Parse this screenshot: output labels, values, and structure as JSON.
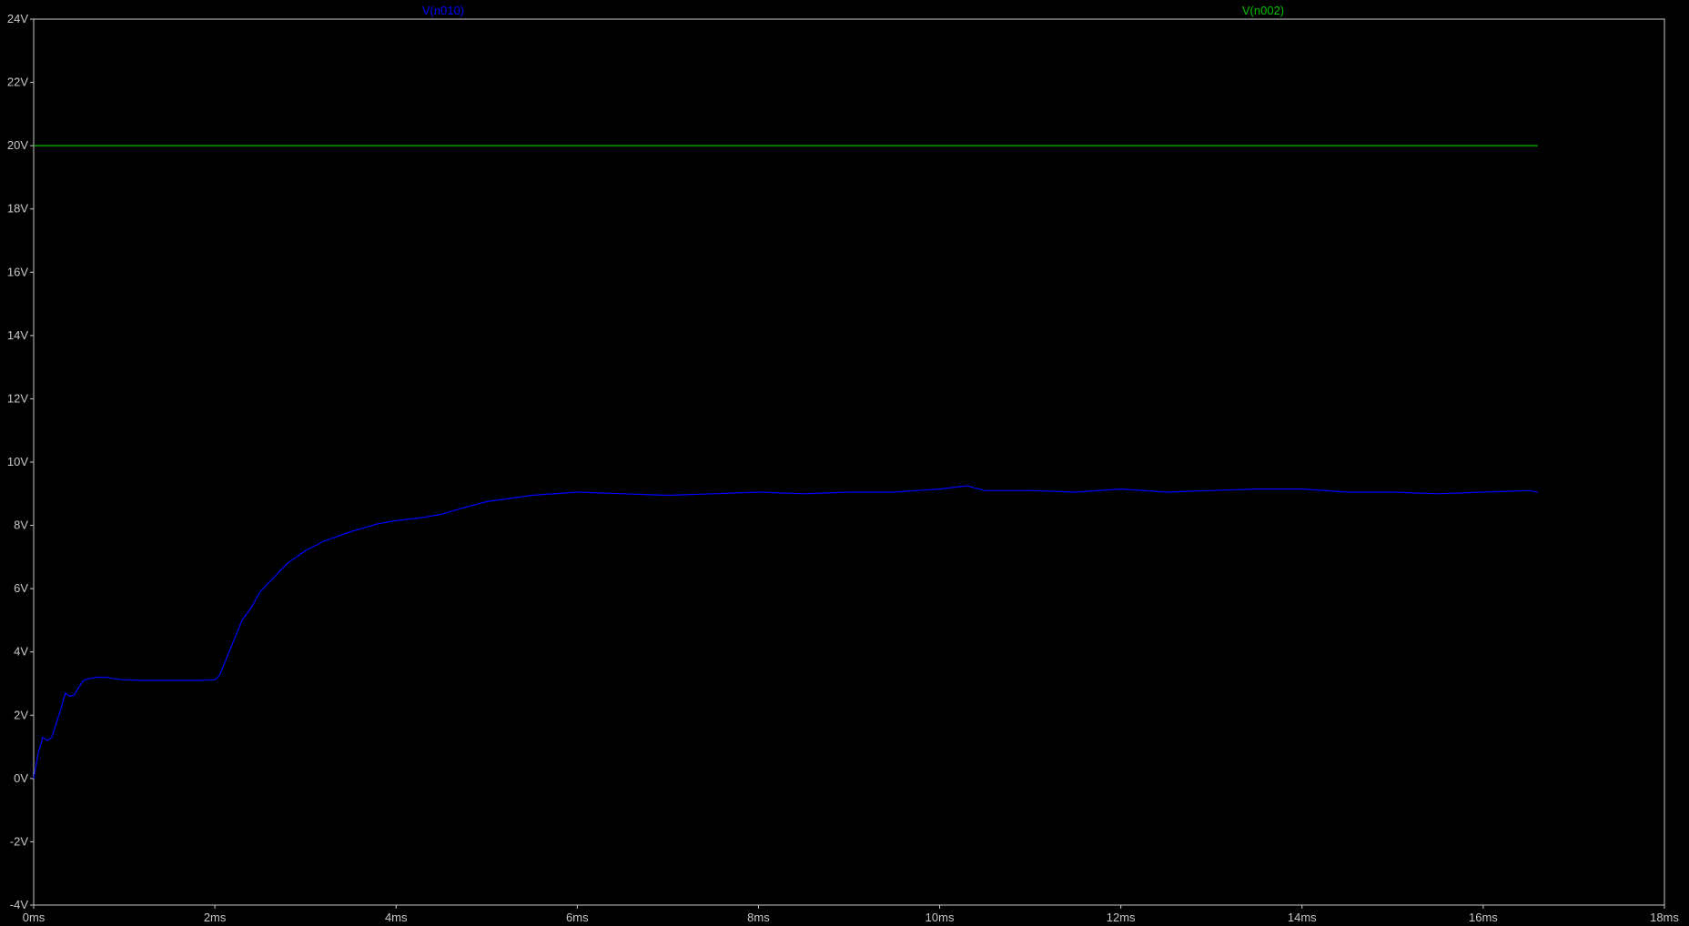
{
  "chart_data": {
    "type": "line",
    "xlabel": "",
    "ylabel": "",
    "xlim": [
      0,
      18
    ],
    "ylim": [
      -4,
      24
    ],
    "grid": false,
    "legend_placement": "top",
    "x_tick_labels": [
      "0ms",
      "2ms",
      "4ms",
      "6ms",
      "8ms",
      "10ms",
      "12ms",
      "14ms",
      "16ms",
      "18ms"
    ],
    "y_tick_labels": [
      "-4V",
      "-2V",
      "0V",
      "2V",
      "4V",
      "6V",
      "8V",
      "10V",
      "12V",
      "14V",
      "16V",
      "18V",
      "20V",
      "22V",
      "24V"
    ],
    "series": [
      {
        "name": "V(n010)",
        "color": "#0000ff",
        "unit_x": "ms",
        "unit_y": "V",
        "x": [
          0,
          0.05,
          0.1,
          0.15,
          0.2,
          0.3,
          0.35,
          0.4,
          0.45,
          0.5,
          0.55,
          0.6,
          0.7,
          0.8,
          0.9,
          1.0,
          1.2,
          1.5,
          1.8,
          2.0,
          2.05,
          2.1,
          2.2,
          2.3,
          2.4,
          2.5,
          2.6,
          2.8,
          3.0,
          3.2,
          3.5,
          3.8,
          4.0,
          4.3,
          4.5,
          4.8,
          5.0,
          5.5,
          6.0,
          6.5,
          7.0,
          7.5,
          8.0,
          8.5,
          9.0,
          9.5,
          10.0,
          10.3,
          10.5,
          11.0,
          11.5,
          12.0,
          12.5,
          13.0,
          13.5,
          14.0,
          14.5,
          15.0,
          15.5,
          16.0,
          16.5,
          16.6
        ],
        "y": [
          0,
          0.8,
          1.3,
          1.2,
          1.3,
          2.2,
          2.7,
          2.6,
          2.65,
          2.9,
          3.1,
          3.15,
          3.2,
          3.2,
          3.15,
          3.12,
          3.1,
          3.1,
          3.1,
          3.12,
          3.25,
          3.6,
          4.3,
          5.0,
          5.4,
          5.9,
          6.2,
          6.8,
          7.2,
          7.5,
          7.8,
          8.05,
          8.15,
          8.25,
          8.35,
          8.6,
          8.75,
          8.95,
          9.05,
          9.0,
          8.95,
          9.0,
          9.05,
          9.0,
          9.05,
          9.05,
          9.15,
          9.25,
          9.1,
          9.1,
          9.05,
          9.15,
          9.05,
          9.1,
          9.15,
          9.15,
          9.05,
          9.05,
          9.0,
          9.05,
          9.1,
          9.05
        ]
      },
      {
        "name": "V(n002)",
        "color": "#00c000",
        "unit_x": "ms",
        "unit_y": "V",
        "x": [
          0,
          16.6
        ],
        "y": [
          20,
          20
        ]
      }
    ]
  }
}
